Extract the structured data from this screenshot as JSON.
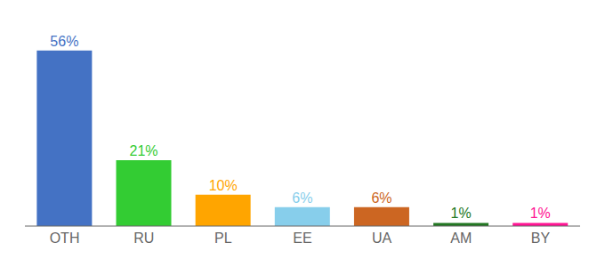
{
  "chart_data": {
    "type": "bar",
    "categories": [
      "OTH",
      "RU",
      "PL",
      "EE",
      "UA",
      "AM",
      "BY"
    ],
    "values": [
      56,
      21,
      10,
      6,
      6,
      1,
      1
    ],
    "value_labels": [
      "56%",
      "21%",
      "10%",
      "6%",
      "6%",
      "1%",
      "1%"
    ],
    "colors": [
      "#4472C4",
      "#33CC33",
      "#FFA500",
      "#87CEEB",
      "#CC6622",
      "#227722",
      "#FF1493"
    ],
    "ylim": [
      0,
      63
    ],
    "data_labels": true,
    "tick_labels": "x",
    "grid": false
  }
}
